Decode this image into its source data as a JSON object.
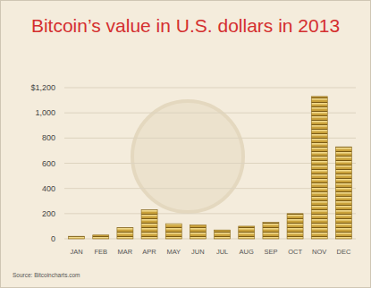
{
  "chart_data": {
    "type": "bar",
    "title": "Bitcoin’s value in U.S. dollars in 2013",
    "source": "Source: Bitcoincharts.com",
    "categories": [
      "JAN",
      "FEB",
      "MAR",
      "APR",
      "MAY",
      "JUN",
      "JUL",
      "AUG",
      "SEP",
      "OCT",
      "NOV",
      "DEC"
    ],
    "values": [
      20,
      30,
      90,
      230,
      120,
      110,
      70,
      100,
      130,
      200,
      1130,
      730
    ],
    "color": "#c9a13b",
    "ylim": [
      0,
      1200
    ],
    "yticks": [
      0,
      200,
      400,
      600,
      800,
      {
        "value": 1000,
        "label": "1,000"
      },
      {
        "value": 1200,
        "label": "$1,200"
      }
    ],
    "grid": true
  }
}
